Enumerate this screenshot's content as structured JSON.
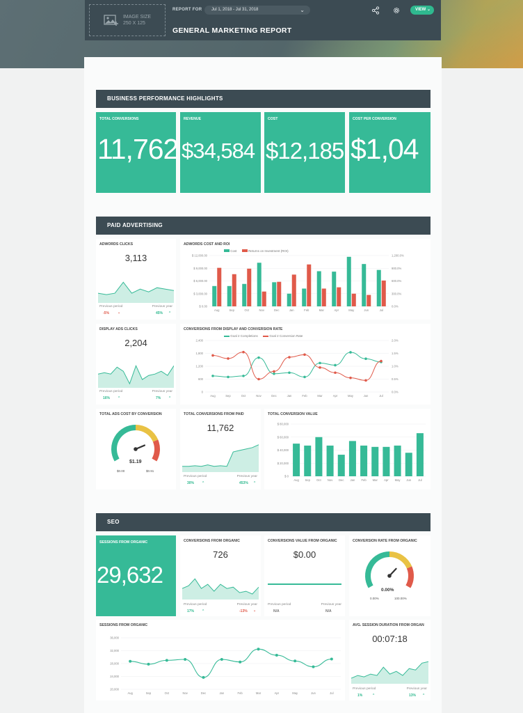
{
  "header": {
    "logo_text1": "IMAGE SIZE",
    "logo_text2": "250 X 125",
    "report_for_label": "REPORT FOR",
    "date_range": "Jul 1, 2018 - Jul 31, 2018",
    "title": "GENERAL MARKETING REPORT",
    "view_label": "VIEW"
  },
  "sections": {
    "business": "BUSINESS PERFORMANCE HIGHLIGHTS",
    "paid": "PAID ADVERTISING",
    "seo": "SEO"
  },
  "kpis": [
    {
      "title": "TOTAL CONVERSIONS",
      "value": "11,762"
    },
    {
      "title": "REVENUE",
      "value": "$34,584"
    },
    {
      "title": "COST",
      "value": "$12,185"
    },
    {
      "title": "COST PER CONVERSION",
      "value": "$1,04"
    }
  ],
  "paid": {
    "adwords_clicks": {
      "title": "ADWORDS CLICKS",
      "value": "3,113",
      "prev_period_label": "Previous period",
      "prev_year_label": "Previous year",
      "prev_period": "-5%",
      "prev_year": "45%",
      "spark": [
        0.35,
        0.3,
        0.35,
        0.75,
        0.35,
        0.5,
        0.4,
        0.55,
        0.5,
        0.45
      ]
    },
    "display_clicks": {
      "title": "DISPLAY ADS CLICKS",
      "value": "2,204",
      "prev_period_label": "Previous period",
      "prev_year_label": "Previous year",
      "prev_period": "16%",
      "prev_year": "7%",
      "spark": [
        0.5,
        0.55,
        0.5,
        0.75,
        0.6,
        0.15,
        0.8,
        0.3,
        0.45,
        0.5,
        0.6,
        0.45,
        0.8
      ]
    },
    "cost_roi": {
      "title": "ADWORDS COST AND ROI",
      "legend_cost": "Cost",
      "legend_roi": "Returns on Investment (ROI)"
    },
    "conv_display": {
      "title": "CONVERSIONS FROM DISPLAY AND CONVERSION RATE",
      "legend_a": "Goal 2 Completions",
      "legend_b": "Goal 2 Conversion Rate"
    },
    "ads_cost_gauge": {
      "title": "TOTAL ADS COST BY CONVERSION",
      "value": "$1.19",
      "min": "$0.00",
      "max": "$0.91",
      "level": 0.78
    },
    "conv_from_paid": {
      "title": "TOTAL CONVERSIONS FROM PAID",
      "value": "11,762",
      "prev_period_label": "Previous period",
      "prev_year_label": "Previous year",
      "prev_period": "30%",
      "prev_year": "453%",
      "spark": [
        0.2,
        0.2,
        0.22,
        0.2,
        0.25,
        0.2,
        0.22,
        0.2,
        0.7,
        0.75,
        0.8,
        0.85,
        0.95
      ]
    },
    "total_conv_value": {
      "title": "TOTAL CONVERSION VALUE"
    }
  },
  "seo": {
    "sessions_kpi": {
      "title": "SESSIONS FROM ORGANIC",
      "value": "29,632"
    },
    "conv_organic": {
      "title": "CONVERSIONS FROM ORGANIC",
      "value": "726",
      "prev_period_label": "Previous period",
      "prev_year_label": "Previous year",
      "prev_period": "17%",
      "prev_year": "-13%",
      "spark": [
        0.4,
        0.5,
        0.75,
        0.4,
        0.55,
        0.3,
        0.55,
        0.4,
        0.45,
        0.25,
        0.3,
        0.2,
        0.45
      ]
    },
    "conv_value_organic": {
      "title": "CONVERSIONS VALUE FROM ORGANIC",
      "value": "$0.00",
      "prev_period_label": "Previous period",
      "prev_year_label": "Previous year",
      "prev_period": "N/A",
      "prev_year": "N/A"
    },
    "conv_rate_gauge": {
      "title": "CONVERSION RATE FROM ORGANIC",
      "value": "0.00%",
      "min": "0.00%",
      "max": "100.00%",
      "level": 0.68
    },
    "sessions_chart": {
      "title": "SESSIONS FROM ORGANIC"
    },
    "avg_session": {
      "title": "AVG. SESSION DURATION FROM ORGAN",
      "value": "00:07:18",
      "prev_period_label": "Previous period",
      "prev_year_label": "Previous year",
      "prev_period": "1%",
      "prev_year": "13%",
      "spark": [
        0.2,
        0.3,
        0.25,
        0.35,
        0.3,
        0.6,
        0.35,
        0.45,
        0.3,
        0.55,
        0.5,
        0.75,
        0.8
      ]
    }
  },
  "chart_data": [
    {
      "type": "bar",
      "title": "ADWORDS COST AND ROI",
      "categories": [
        "Aug",
        "Sep",
        "Oct",
        "Nov",
        "Dec",
        "Jan",
        "Feb",
        "Mar",
        "Apr",
        "May",
        "Jun",
        "Jul"
      ],
      "y_ticks": [
        "$ 12,000.00",
        "$ 9,000.00",
        "$ 6,000.00",
        "$ 3,000.00",
        "$ 0.00"
      ],
      "y2_ticks": [
        "1,200.0%",
        "900.0%",
        "600.0%",
        "300.0%",
        "0.0%"
      ],
      "ylim": [
        0,
        12000
      ],
      "y2lim": [
        0,
        1200
      ],
      "series": [
        {
          "name": "Cost",
          "axis": "left",
          "color": "#36ba97",
          "values": [
            4800,
            4800,
            5300,
            10300,
            5700,
            3000,
            4200,
            8300,
            8200,
            11700,
            10000,
            8600
          ]
        },
        {
          "name": "Returns on Investment (ROI)",
          "axis": "right",
          "color": "#e05a4a",
          "values": [
            910,
            760,
            890,
            350,
            580,
            750,
            990,
            420,
            450,
            300,
            270,
            610
          ]
        }
      ]
    },
    {
      "type": "line",
      "title": "CONVERSIONS FROM DISPLAY AND CONVERSION RATE",
      "categories": [
        "Aug",
        "Sep",
        "Oct",
        "Nov",
        "Dec",
        "Jan",
        "Feb",
        "Mar",
        "Apr",
        "May",
        "Jun",
        "Jul"
      ],
      "y_ticks": [
        "2,400",
        "1,800",
        "1,200",
        "600",
        "0"
      ],
      "y2_ticks": [
        "2.0%",
        "1.5%",
        "1.0%",
        "0.5%",
        "0.0%"
      ],
      "ylim": [
        0,
        2400
      ],
      "y2lim": [
        0,
        2
      ],
      "series": [
        {
          "name": "Goal 2 Completions",
          "axis": "left",
          "color": "#36ba97",
          "values": [
            750,
            700,
            750,
            1600,
            850,
            900,
            700,
            1350,
            1250,
            1850,
            1550,
            1400
          ]
        },
        {
          "name": "Goal 2 Conversion Rate",
          "axis": "right",
          "color": "#e05a4a",
          "values": [
            1.42,
            1.3,
            1.55,
            0.5,
            0.8,
            1.35,
            1.45,
            0.95,
            0.75,
            0.55,
            0.45,
            1.2
          ]
        }
      ]
    },
    {
      "type": "bar",
      "title": "TOTAL CONVERSION VALUE",
      "categories": [
        "Aug",
        "Sep",
        "Oct",
        "Nov",
        "Dec",
        "Jan",
        "Feb",
        "Mar",
        "Apr",
        "May",
        "Jun",
        "Jul"
      ],
      "y_ticks": [
        "$ 80,000",
        "$ 60,000",
        "$ 40,000",
        "$ 20,000",
        "$ 0"
      ],
      "ylim": [
        0,
        80000
      ],
      "series": [
        {
          "name": "",
          "color": "#36ba97",
          "values": [
            50000,
            47000,
            60000,
            47000,
            33000,
            54000,
            47000,
            45000,
            45000,
            47000,
            36000,
            66000
          ]
        }
      ]
    },
    {
      "type": "line",
      "title": "SESSIONS FROM ORGANIC",
      "categories": [
        "Aug",
        "Sep",
        "Oct",
        "Nov",
        "Dec",
        "Jan",
        "Feb",
        "Mar",
        "Apr",
        "May",
        "Jun",
        "Jul"
      ],
      "y_ticks": [
        "36,000",
        "32,000",
        "28,000",
        "24,000",
        "20,000"
      ],
      "ylim": [
        20000,
        36000
      ],
      "series": [
        {
          "name": "",
          "color": "#36ba97",
          "values": [
            28700,
            27800,
            29000,
            29300,
            23700,
            29300,
            28500,
            32500,
            30600,
            28800,
            27000,
            29400
          ]
        }
      ]
    }
  ]
}
